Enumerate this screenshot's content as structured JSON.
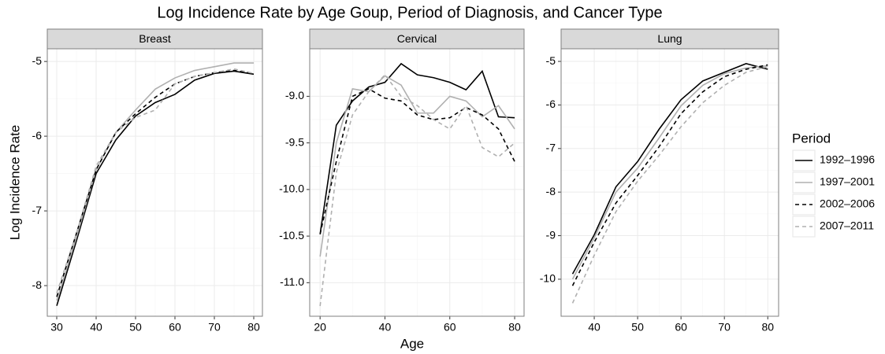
{
  "title": "Log Incidence Rate by Age Goup, Period of Diagnosis, and Cancer Type",
  "x_label": "Age",
  "y_label": "Log Incidence Rate",
  "legend_title": "Period",
  "chart_data": [
    {
      "type": "line",
      "title": "Breast",
      "grid": true,
      "x": [
        30,
        35,
        40,
        45,
        50,
        55,
        60,
        65,
        70,
        75,
        80
      ],
      "xlim": [
        27.6,
        82.2
      ],
      "xticks": [
        30,
        40,
        50,
        60,
        70,
        80
      ],
      "ylim": [
        -8.41,
        -4.83
      ],
      "yticks": [
        -8,
        -7,
        -6,
        -5
      ],
      "series": [
        {
          "name": "1992–1996",
          "color": "#000000",
          "dash": false,
          "values": [
            -8.27,
            -7.4,
            -6.5,
            -6.05,
            -5.73,
            -5.55,
            -5.44,
            -5.25,
            -5.16,
            -5.13,
            -5.17
          ]
        },
        {
          "name": "1997–2001",
          "color": "#b0b0b0",
          "dash": false,
          "values": [
            -8.2,
            -7.35,
            -6.45,
            -5.95,
            -5.65,
            -5.37,
            -5.22,
            -5.12,
            -5.07,
            -5.02,
            -5.02
          ]
        },
        {
          "name": "2002–2006",
          "color": "#000000",
          "dash": true,
          "values": [
            -8.15,
            -7.3,
            -6.45,
            -5.95,
            -5.7,
            -5.48,
            -5.3,
            -5.2,
            -5.15,
            -5.12,
            -5.16
          ]
        },
        {
          "name": "2007–2011",
          "color": "#b0b0b0",
          "dash": true,
          "values": [
            -8.1,
            -7.3,
            -6.4,
            -5.95,
            -5.75,
            -5.65,
            -5.3,
            -5.2,
            -5.15,
            -5.1,
            -5.16
          ]
        }
      ]
    },
    {
      "type": "line",
      "title": "Cervical",
      "grid": true,
      "x": [
        20,
        25,
        30,
        35,
        40,
        45,
        50,
        55,
        60,
        65,
        70,
        75,
        80
      ],
      "xlim": [
        16.8,
        82.9
      ],
      "xticks": [
        20,
        40,
        60,
        80
      ],
      "ylim": [
        -11.36,
        -8.49
      ],
      "yticks": [
        {
          "value": -11,
          "label": "-11.0"
        },
        {
          "value": -10.5,
          "label": "-10.5"
        },
        {
          "value": -10,
          "label": "-10.0"
        },
        {
          "value": -9.5,
          "label": "-9.5"
        },
        {
          "value": -9,
          "label": "-9.0"
        }
      ],
      "series": [
        {
          "name": "1992–1996",
          "color": "#000000",
          "dash": false,
          "values": [
            -10.48,
            -9.31,
            -9.05,
            -8.9,
            -8.85,
            -8.65,
            -8.77,
            -8.8,
            -8.85,
            -8.93,
            -8.73,
            -9.22,
            -9.23
          ]
        },
        {
          "name": "1997–2001",
          "color": "#b0b0b0",
          "dash": false,
          "values": [
            -10.72,
            -9.5,
            -8.92,
            -8.95,
            -8.78,
            -8.88,
            -9.18,
            -9.18,
            -9.0,
            -9.05,
            -9.22,
            -9.1,
            -9.35
          ]
        },
        {
          "name": "2002–2006",
          "color": "#000000",
          "dash": true,
          "values": [
            -10.48,
            -9.7,
            -9.0,
            -8.92,
            -9.02,
            -9.05,
            -9.2,
            -9.25,
            -9.23,
            -9.12,
            -9.2,
            -9.35,
            -9.7
          ]
        },
        {
          "name": "2007–2011",
          "color": "#b0b0b0",
          "dash": true,
          "values": [
            -11.25,
            -9.82,
            -9.2,
            -8.95,
            -8.77,
            -9.0,
            -9.1,
            -9.25,
            -9.35,
            -9.1,
            -9.55,
            -9.65,
            -9.5
          ]
        }
      ]
    },
    {
      "type": "line",
      "title": "Lung",
      "grid": true,
      "x": [
        35,
        40,
        45,
        50,
        55,
        60,
        65,
        70,
        75,
        80
      ],
      "xlim": [
        32.36,
        82.5
      ],
      "xticks": [
        40,
        50,
        60,
        70,
        80
      ],
      "ylim": [
        -10.85,
        -4.71
      ],
      "yticks": [
        -10,
        -9,
        -8,
        -7,
        -6,
        -5
      ],
      "series": [
        {
          "name": "1992–1996",
          "color": "#000000",
          "dash": false,
          "values": [
            -9.88,
            -8.98,
            -7.88,
            -7.3,
            -6.55,
            -5.88,
            -5.45,
            -5.25,
            -5.05,
            -5.18
          ]
        },
        {
          "name": "1997–2001",
          "color": "#b0b0b0",
          "dash": false,
          "values": [
            -10.0,
            -9.05,
            -8.0,
            -7.45,
            -6.75,
            -6.02,
            -5.55,
            -5.28,
            -5.15,
            -5.1
          ]
        },
        {
          "name": "2002–2006",
          "color": "#000000",
          "dash": true,
          "values": [
            -10.15,
            -9.15,
            -8.25,
            -7.62,
            -6.95,
            -6.2,
            -5.7,
            -5.35,
            -5.18,
            -5.08
          ]
        },
        {
          "name": "2007–2011",
          "color": "#b0b0b0",
          "dash": true,
          "values": [
            -10.55,
            -9.45,
            -8.45,
            -7.75,
            -7.15,
            -6.5,
            -5.95,
            -5.55,
            -5.25,
            -5.12
          ]
        }
      ]
    }
  ]
}
